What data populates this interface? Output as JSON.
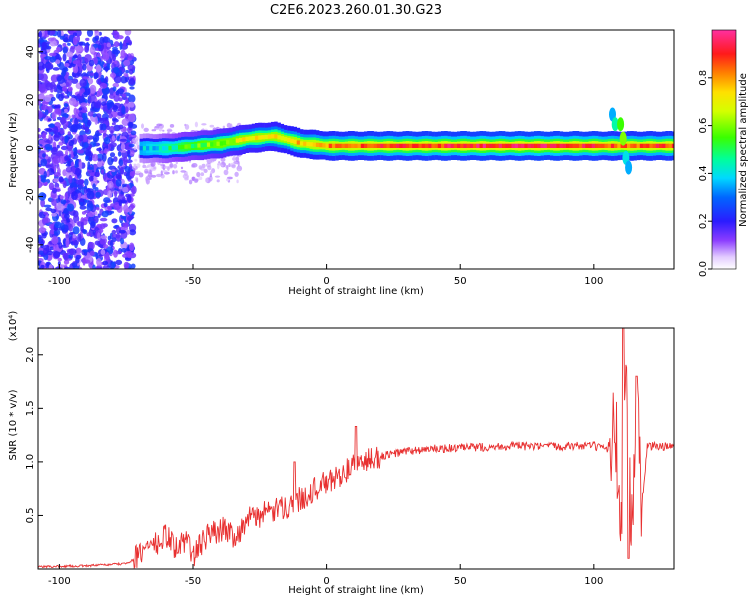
{
  "figure": {
    "title": "C2E6.2023.260.01.30.G23"
  },
  "chart_data": [
    {
      "type": "heatmap",
      "xlabel": "Height of straight line (km)",
      "ylabel": "Frequency (Hz)",
      "xlim": [
        -108,
        130
      ],
      "ylim": [
        -50,
        49
      ],
      "xticks": [
        "-100",
        "-50",
        "0",
        "50",
        "100"
      ],
      "xtick_values": [
        -100,
        -50,
        0,
        50,
        100
      ],
      "yticks": [
        "40",
        "20",
        "0",
        "-20",
        "-40"
      ],
      "ytick_values": [
        40,
        20,
        0,
        -20,
        -40
      ],
      "colorbar": {
        "label": "Normalized spectral amplitude",
        "range": [
          0,
          1
        ],
        "ticks": [
          "0.0",
          "0.2",
          "0.4",
          "0.6",
          "0.8"
        ],
        "tick_values": [
          0.0,
          0.2,
          0.4,
          0.6,
          0.8
        ],
        "colormap": [
          "#ffffff",
          "#9a5cff",
          "#5a00f0",
          "#1e30ff",
          "#00d8ff",
          "#00ff6a",
          "#7dff00",
          "#ffe600",
          "#ff7a00",
          "#ff1a1a",
          "#ff3ca8"
        ]
      },
      "noise_region": {
        "x": [
          -108,
          -72
        ],
        "y": [
          -50,
          49
        ]
      },
      "ridge": {
        "x": [
          -70,
          -60,
          -50,
          -40,
          -30,
          -20,
          -10,
          0,
          10,
          20,
          40,
          60,
          80,
          100,
          108,
          130
        ],
        "freq": [
          0,
          0,
          1,
          2,
          4,
          5,
          2,
          1,
          1,
          1,
          1,
          1,
          1,
          1,
          1,
          1
        ],
        "amplitude": [
          0.35,
          0.45,
          0.55,
          0.62,
          0.7,
          0.72,
          0.78,
          0.82,
          0.85,
          0.88,
          0.9,
          0.92,
          0.93,
          0.9,
          0.85,
          0.88
        ]
      },
      "grid": false
    },
    {
      "type": "line",
      "xlabel": "Height of straight line (km)",
      "ylabel": "SNR (10 * v/v)",
      "yscale_label": "(x10⁴)",
      "xlim": [
        -108,
        130
      ],
      "ylim": [
        0,
        2.25
      ],
      "xticks": [
        "-100",
        "-50",
        "0",
        "50",
        "100"
      ],
      "xtick_values": [
        -100,
        -50,
        0,
        50,
        100
      ],
      "yticks": [
        "0.5",
        "1.0",
        "1.5",
        "2.0"
      ],
      "ytick_values": [
        0.5,
        1.0,
        1.5,
        2.0
      ],
      "color": "#e83030",
      "grid": false,
      "series": [
        {
          "x": [
            -108,
            -90,
            -75,
            -70,
            -66,
            -63,
            -60,
            -56,
            -52,
            -50,
            -46,
            -42,
            -38,
            -34,
            -30,
            -26,
            -22,
            -18,
            -14,
            -10,
            -6,
            -2,
            2,
            6,
            10,
            14,
            20,
            30,
            40,
            50,
            60,
            70,
            80,
            90,
            100,
            105,
            108,
            110,
            112,
            114,
            116,
            118,
            120,
            125,
            130
          ],
          "y": [
            0.02,
            0.03,
            0.05,
            0.12,
            0.25,
            0.22,
            0.32,
            0.18,
            0.3,
            0.1,
            0.28,
            0.35,
            0.38,
            0.3,
            0.45,
            0.5,
            0.52,
            0.55,
            0.6,
            0.65,
            0.72,
            0.78,
            0.82,
            0.9,
            0.95,
            1.0,
            1.05,
            1.1,
            1.12,
            1.13,
            1.14,
            1.15,
            1.14,
            1.15,
            1.15,
            1.1,
            1.4,
            0.35,
            1.8,
            0.3,
            1.6,
            0.6,
            1.15,
            1.14,
            1.15
          ]
        }
      ],
      "spikes": {
        "x": [
          -12,
          11,
          111,
          113,
          116
        ],
        "y": [
          1.0,
          1.33,
          2.25,
          0.1,
          1.8
        ]
      }
    }
  ]
}
